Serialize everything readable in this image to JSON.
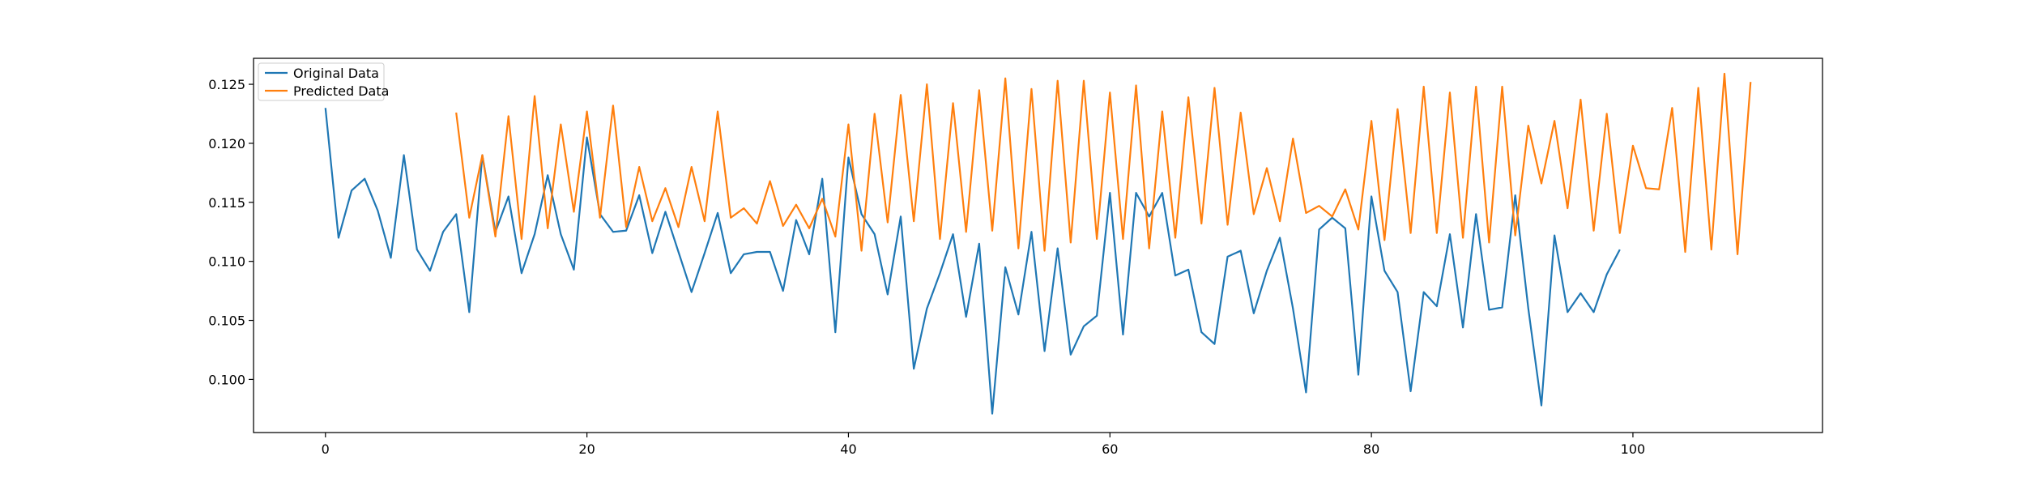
{
  "chart_data": {
    "type": "line",
    "title": "",
    "xlabel": "",
    "ylabel": "",
    "xlim": [
      -5.5,
      114.5
    ],
    "ylim": [
      0.0955,
      0.1272
    ],
    "x_ticks": [
      0,
      20,
      40,
      60,
      80,
      100
    ],
    "y_ticks": [
      0.1,
      0.105,
      0.11,
      0.115,
      0.12,
      0.125
    ],
    "grid": false,
    "legend_position": "top-left",
    "series": [
      {
        "name": "Original Data",
        "color": "#1f77b4",
        "x_start": 0,
        "values": [
          0.123,
          0.112,
          0.116,
          0.117,
          0.1143,
          0.1103,
          0.119,
          0.111,
          0.1092,
          0.1125,
          0.114,
          0.1057,
          0.119,
          0.1125,
          0.1155,
          0.109,
          0.1123,
          0.1173,
          0.1123,
          0.1093,
          0.1205,
          0.114,
          0.1125,
          0.1126,
          0.1156,
          0.1107,
          0.1142,
          0.1108,
          0.1074,
          0.1107,
          0.1141,
          0.109,
          0.1106,
          0.1108,
          0.1108,
          0.1075,
          0.1135,
          0.1106,
          0.117,
          0.104,
          0.1188,
          0.114,
          0.1123,
          0.1072,
          0.1138,
          0.1009,
          0.106,
          0.109,
          0.1123,
          0.1053,
          0.1115,
          0.0971,
          0.1095,
          0.1055,
          0.1125,
          0.1024,
          0.1111,
          0.1021,
          0.1045,
          0.1054,
          0.1158,
          0.1038,
          0.1158,
          0.1138,
          0.1158,
          0.1088,
          0.1093,
          0.104,
          0.103,
          0.1104,
          0.1109,
          0.1056,
          0.1092,
          0.112,
          0.106,
          0.0989,
          0.1127,
          0.1137,
          0.1128,
          0.1004,
          0.1155,
          0.1092,
          0.1074,
          0.099,
          0.1074,
          0.1062,
          0.1123,
          0.1044,
          0.114,
          0.1059,
          0.1061,
          0.1156,
          0.106,
          0.0978,
          0.1122,
          0.1057,
          0.1073,
          0.1057,
          0.1089,
          0.111
        ]
      },
      {
        "name": "Predicted Data",
        "color": "#ff7f0e",
        "x_start": 10,
        "values": [
          0.1226,
          0.1137,
          0.119,
          0.1121,
          0.1223,
          0.1119,
          0.124,
          0.1128,
          0.1216,
          0.1142,
          0.1227,
          0.1137,
          0.1232,
          0.1129,
          0.118,
          0.1134,
          0.1162,
          0.1129,
          0.118,
          0.1134,
          0.1227,
          0.1137,
          0.1145,
          0.1132,
          0.1168,
          0.113,
          0.1148,
          0.1128,
          0.1153,
          0.1121,
          0.1216,
          0.1109,
          0.1225,
          0.1133,
          0.1241,
          0.1134,
          0.125,
          0.1119,
          0.1234,
          0.1125,
          0.1245,
          0.1126,
          0.1255,
          0.1111,
          0.1246,
          0.1109,
          0.1253,
          0.1116,
          0.1253,
          0.1119,
          0.1243,
          0.1119,
          0.1249,
          0.1111,
          0.1227,
          0.112,
          0.1239,
          0.1132,
          0.1247,
          0.1131,
          0.1226,
          0.114,
          0.1179,
          0.1134,
          0.1204,
          0.1141,
          0.1147,
          0.1138,
          0.1161,
          0.1127,
          0.1219,
          0.1118,
          0.1229,
          0.1124,
          0.1248,
          0.1124,
          0.1243,
          0.112,
          0.1248,
          0.1116,
          0.1248,
          0.1122,
          0.1215,
          0.1166,
          0.1219,
          0.1145,
          0.1237,
          0.1126,
          0.1225,
          0.1124,
          0.1198,
          0.1162,
          0.1161,
          0.123,
          0.1108,
          0.1247,
          0.111,
          0.1259,
          0.1106,
          0.1252
        ]
      }
    ]
  }
}
